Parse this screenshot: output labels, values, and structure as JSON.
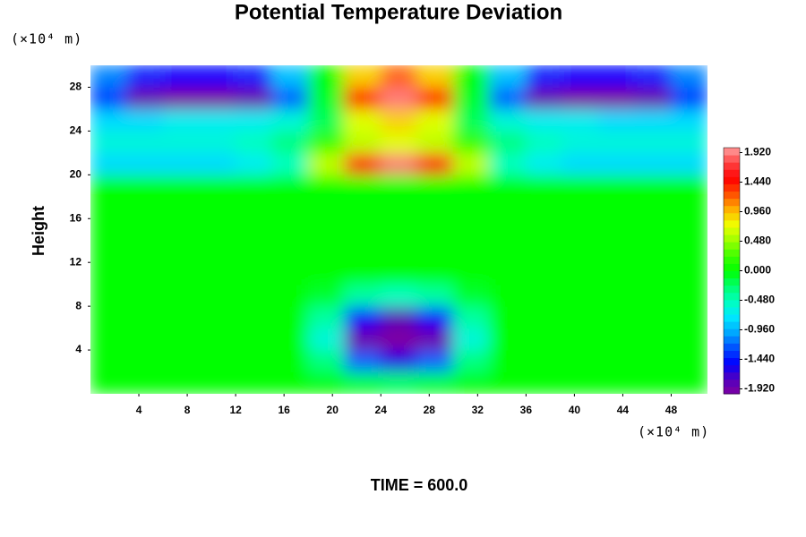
{
  "chart_data": {
    "type": "contour",
    "title": "Potential Temperature Deviation",
    "y_unit": "(×10⁴ m)",
    "x_unit": "(×10⁴ m)",
    "y_label": "Height",
    "footer": "TIME = 600.0",
    "x": [
      1.5,
      4.5,
      7.5,
      10.5,
      13.5,
      16.5,
      19.5,
      22.5,
      25.5,
      28.5,
      31.5,
      34.5,
      37.5,
      40.5,
      43.5,
      46.5,
      49.5
    ],
    "y": [
      1,
      3,
      5,
      7,
      9,
      11,
      13,
      15,
      17,
      19,
      21,
      23,
      25,
      27,
      29
    ],
    "z": [
      [
        0,
        0,
        0,
        0,
        0,
        0,
        0,
        -0.1,
        -0.2,
        -0.1,
        0,
        0,
        0,
        0,
        0,
        0,
        0
      ],
      [
        0,
        0,
        0,
        0,
        0,
        0,
        -0.3,
        -1.2,
        -1.6,
        -1.2,
        -0.3,
        0,
        0,
        0,
        0,
        0,
        0
      ],
      [
        0,
        0,
        0,
        0,
        0,
        0,
        -0.6,
        -1.9,
        -2.0,
        -1.9,
        -0.6,
        0,
        0,
        0,
        0,
        0,
        0
      ],
      [
        0,
        0,
        0,
        0,
        0,
        0,
        -0.4,
        -1.5,
        -1.8,
        -1.5,
        -0.4,
        0,
        0,
        0,
        0,
        0,
        0
      ],
      [
        0,
        0,
        0,
        0,
        0,
        0,
        -0.1,
        -0.4,
        -0.5,
        -0.4,
        -0.1,
        0,
        0,
        0,
        0,
        0,
        0
      ],
      [
        0,
        0,
        0,
        0,
        0,
        0,
        0,
        0,
        0,
        0,
        0,
        0,
        0,
        0,
        0,
        0,
        0
      ],
      [
        0,
        0,
        0,
        0,
        0,
        0,
        0,
        0,
        0,
        0,
        0,
        0,
        0,
        0,
        0,
        0,
        0
      ],
      [
        0,
        0,
        0,
        0,
        0,
        0,
        0,
        0,
        0,
        0,
        0,
        0,
        0,
        0,
        0,
        0,
        0
      ],
      [
        0,
        0,
        0,
        0,
        0,
        0,
        0,
        0,
        0,
        0,
        0,
        0,
        0,
        0,
        0,
        0,
        0
      ],
      [
        0,
        0,
        0,
        0,
        0,
        0,
        0,
        0,
        0,
        0,
        0,
        0,
        0,
        0,
        0,
        0,
        0
      ],
      [
        -0.8,
        -0.8,
        -0.8,
        -0.8,
        -0.7,
        -0.5,
        0.6,
        1.6,
        1.9,
        1.6,
        0.6,
        -0.5,
        -0.7,
        -0.8,
        -0.8,
        -0.8,
        -0.8
      ],
      [
        -0.6,
        -0.6,
        -0.6,
        -0.6,
        -0.5,
        -0.3,
        0.2,
        0.6,
        0.7,
        0.6,
        0.2,
        -0.3,
        -0.5,
        -0.6,
        -0.6,
        -0.6,
        -0.6
      ],
      [
        -0.8,
        -0.8,
        -0.7,
        -0.7,
        -0.7,
        -0.6,
        -0.2,
        0.7,
        0.9,
        0.7,
        -0.2,
        -0.6,
        -0.7,
        -0.7,
        -0.8,
        -0.8,
        -0.8
      ],
      [
        -1.3,
        -1.9,
        -2.0,
        -2.0,
        -1.9,
        -1.2,
        -0.1,
        1.4,
        1.9,
        1.4,
        -0.1,
        -1.2,
        -1.9,
        -2.0,
        -2.0,
        -1.9,
        -1.3
      ],
      [
        -1.1,
        -1.4,
        -1.5,
        -1.5,
        -1.4,
        -0.9,
        0,
        0.9,
        1.2,
        0.9,
        0,
        -0.9,
        -1.4,
        -1.5,
        -1.5,
        -1.4,
        -1.1
      ]
    ],
    "xlim": [
      0,
      51
    ],
    "ylim": [
      0,
      30
    ],
    "xticks": [
      4,
      8,
      12,
      16,
      20,
      24,
      28,
      32,
      36,
      40,
      44,
      48
    ],
    "yticks": [
      4,
      8,
      12,
      16,
      20,
      24,
      28
    ],
    "zlim": [
      -2,
      2
    ],
    "colormap": [
      "#8000a0",
      "#5000c0",
      "#0000ff",
      "#0050ff",
      "#00a8ff",
      "#00e8ff",
      "#00ffc0",
      "#00ff70",
      "#00ff00",
      "#40ff00",
      "#a0ff00",
      "#f0ff00",
      "#ffb000",
      "#ff5000",
      "#ff0000",
      "#ff4040",
      "#ffa0a0"
    ],
    "colorbar_ticks": [
      {
        "value": 1.92,
        "label": "1.920"
      },
      {
        "value": 1.44,
        "label": "1.440"
      },
      {
        "value": 0.96,
        "label": "0.960"
      },
      {
        "value": 0.48,
        "label": "0.480"
      },
      {
        "value": 0,
        "label": "0.000"
      },
      {
        "value": -0.48,
        "label": "-0.480"
      },
      {
        "value": -0.96,
        "label": "-0.960"
      },
      {
        "value": -1.44,
        "label": "-1.440"
      },
      {
        "value": -1.92,
        "label": "-1.920"
      }
    ]
  }
}
